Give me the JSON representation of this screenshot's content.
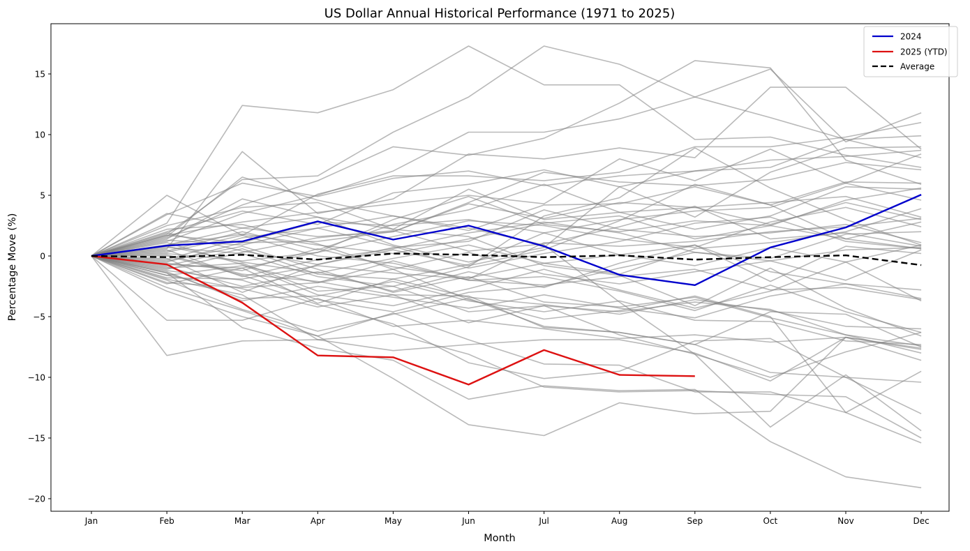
{
  "chart_data": {
    "type": "line",
    "title": "US Dollar Annual Historical Performance (1971 to 2025)",
    "xlabel": "Month",
    "ylabel": "Percentage Move (%)",
    "categories": [
      "Jan",
      "Feb",
      "Mar",
      "Apr",
      "May",
      "Jun",
      "Jul",
      "Aug",
      "Sep",
      "Oct",
      "Nov",
      "Dec"
    ],
    "yticks": [
      15,
      10,
      5,
      0,
      -5,
      -10,
      -15,
      -20
    ],
    "ytick_labels": [
      "15",
      "10",
      "5",
      "0",
      "−5",
      "−10",
      "−15",
      "−20"
    ],
    "ylim": [
      -21,
      19
    ],
    "grid": false,
    "legend_position": "top-right",
    "legend": [
      {
        "label": "2024",
        "color": "#0000cc",
        "style": "solid"
      },
      {
        "label": "2025 (YTD)",
        "color": "#dd1111",
        "style": "solid"
      },
      {
        "label": "Average",
        "color": "#000000",
        "style": "dashed"
      }
    ],
    "highlight_series": [
      {
        "name": "2024",
        "color": "#0000cc",
        "values": [
          0,
          0.85,
          1.2,
          2.85,
          1.35,
          2.5,
          0.8,
          -1.55,
          -2.4,
          0.7,
          2.35,
          5.05
        ]
      },
      {
        "name": "2025 (YTD)",
        "color": "#dd1111",
        "values": [
          0,
          -0.7,
          -3.85,
          -8.2,
          -8.35,
          -10.6,
          -7.75,
          -9.8,
          -9.9
        ]
      },
      {
        "name": "Average",
        "color": "#000000",
        "values": [
          0,
          -0.1,
          0.1,
          -0.3,
          0.2,
          0.1,
          -0.1,
          0.05,
          -0.3,
          -0.1,
          0.05,
          -0.75
        ]
      }
    ],
    "historical_color": "#b0b0b0",
    "historical_series": [
      {
        "name": "hist-1",
        "values": [
          0,
          2.7,
          12.4,
          11.8,
          13.7,
          17.3,
          14.1,
          14.1,
          9.6,
          9.8,
          8.3,
          7.3
        ]
      },
      {
        "name": "hist-2",
        "values": [
          0,
          1.8,
          6.3,
          6.6,
          10.2,
          13.1,
          17.3,
          15.8,
          13.1,
          11.4,
          9.6,
          8.1
        ]
      },
      {
        "name": "hist-3",
        "values": [
          0,
          1.5,
          4.2,
          6.2,
          9.0,
          8.3,
          9.7,
          12.6,
          16.1,
          15.5,
          7.9,
          5.9
        ]
      },
      {
        "name": "hist-4",
        "values": [
          0,
          1.2,
          3.5,
          5.0,
          7.0,
          10.2,
          10.2,
          11.3,
          13.1,
          15.4,
          9.4,
          11.8
        ]
      },
      {
        "name": "hist-5",
        "values": [
          0,
          0.6,
          8.6,
          3.5,
          4.7,
          8.4,
          8.0,
          8.9,
          8.1,
          13.9,
          13.9,
          8.8
        ]
      },
      {
        "name": "hist-6",
        "values": [
          0,
          5.0,
          1.7,
          5.1,
          6.6,
          6.6,
          6.2,
          6.9,
          9.0,
          9.0,
          9.8,
          11.0
        ]
      },
      {
        "name": "hist-7",
        "values": [
          0,
          3.4,
          6.0,
          4.9,
          6.4,
          7.0,
          5.8,
          6.6,
          7.0,
          7.3,
          9.6,
          9.9
        ]
      },
      {
        "name": "hist-8",
        "values": [
          0,
          2.0,
          3.7,
          2.6,
          5.2,
          5.9,
          7.1,
          5.7,
          3.2,
          6.9,
          8.9,
          9.0
        ]
      },
      {
        "name": "hist-9",
        "values": [
          0,
          1.7,
          2.8,
          3.6,
          4.3,
          5.0,
          4.3,
          8.0,
          6.2,
          8.8,
          6.0,
          8.4
        ]
      },
      {
        "name": "hist-10",
        "values": [
          0,
          3.5,
          2.3,
          1.6,
          2.0,
          4.4,
          6.9,
          6.1,
          5.8,
          6.3,
          7.7,
          7.1
        ]
      },
      {
        "name": "hist-11",
        "values": [
          0,
          1.3,
          0.9,
          2.3,
          3.3,
          2.1,
          4.2,
          4.3,
          5.7,
          4.2,
          6.1,
          6.0
        ]
      },
      {
        "name": "hist-12",
        "values": [
          0,
          0.4,
          2.0,
          0.5,
          2.6,
          3.8,
          5.9,
          3.6,
          2.2,
          3.3,
          5.7,
          5.5
        ]
      },
      {
        "name": "hist-13",
        "values": [
          0,
          -0.5,
          1.1,
          1.2,
          2.0,
          4.3,
          3.1,
          4.4,
          4.0,
          4.4,
          4.9,
          3.2
        ]
      },
      {
        "name": "hist-14",
        "values": [
          0,
          0.9,
          1.8,
          0.9,
          0.2,
          1.4,
          2.7,
          3.3,
          1.4,
          2.5,
          4.6,
          5.6
        ]
      },
      {
        "name": "hist-15",
        "values": [
          0,
          0.2,
          -0.4,
          0.3,
          1.6,
          2.9,
          2.5,
          1.4,
          0.7,
          2.8,
          4.0,
          2.4
        ]
      },
      {
        "name": "hist-16",
        "values": [
          0,
          1.9,
          0.4,
          -0.7,
          0.7,
          1.2,
          3.8,
          2.2,
          1.6,
          1.9,
          2.6,
          1.1
        ]
      },
      {
        "name": "hist-17",
        "values": [
          0,
          -1.1,
          0.3,
          1.5,
          2.1,
          0.4,
          1.0,
          2.4,
          4.1,
          1.4,
          1.9,
          0.8
        ]
      },
      {
        "name": "hist-18",
        "values": [
          0,
          0.5,
          -1.7,
          -0.3,
          0.6,
          1.9,
          2.8,
          1.9,
          0.3,
          -0.2,
          1.8,
          2.0
        ]
      },
      {
        "name": "hist-19",
        "values": [
          0,
          -0.3,
          1.5,
          2.3,
          0.8,
          -1.0,
          0.2,
          1.2,
          2.7,
          3.2,
          1.2,
          0.6
        ]
      },
      {
        "name": "hist-20",
        "values": [
          0,
          0.8,
          -0.5,
          -1.4,
          -0.2,
          0.9,
          -0.6,
          -1.5,
          0.6,
          1.1,
          2.0,
          3.9
        ]
      },
      {
        "name": "hist-21",
        "values": [
          0,
          -0.6,
          -1.2,
          0.6,
          -0.9,
          -1.8,
          -0.6,
          0.1,
          -0.8,
          0.7,
          -0.5,
          0.9
        ]
      },
      {
        "name": "hist-22",
        "values": [
          0,
          -1.6,
          -0.8,
          -2.2,
          -1.1,
          0.3,
          -1.5,
          -2.3,
          -1.3,
          -0.4,
          0.5,
          0.7
        ]
      },
      {
        "name": "hist-23",
        "values": [
          0,
          -0.9,
          -2.5,
          -1.3,
          -2.9,
          -1.3,
          -2.6,
          -0.6,
          0.9,
          -1.3,
          -2.3,
          -3.5
        ]
      },
      {
        "name": "hist-24",
        "values": [
          0,
          1.1,
          -0.7,
          -3.2,
          -4.1,
          -2.7,
          -1.1,
          -2.8,
          -4.3,
          -2.9,
          -0.5,
          -3.7
        ]
      },
      {
        "name": "hist-25",
        "values": [
          0,
          -2.3,
          -1.0,
          -3.9,
          -1.9,
          -3.4,
          -4.0,
          -4.8,
          -3.6,
          -4.5,
          -5.8,
          -6.0
        ]
      },
      {
        "name": "hist-26",
        "values": [
          0,
          -1.3,
          -3.7,
          -2.5,
          -3.4,
          -4.3,
          -3.2,
          -4.3,
          -5.1,
          -3.3,
          -2.3,
          -2.8
        ]
      },
      {
        "name": "hist-27",
        "values": [
          0,
          -2.0,
          -4.4,
          -6.2,
          -4.8,
          -3.5,
          -5.8,
          -6.3,
          -7.3,
          -4.6,
          -4.8,
          -7.5
        ]
      },
      {
        "name": "hist-28",
        "values": [
          0,
          -1.6,
          -2.7,
          -4.2,
          -3.2,
          -5.5,
          -4.1,
          -4.6,
          -3.8,
          -4.4,
          -6.5,
          -7.4
        ]
      },
      {
        "name": "hist-29",
        "values": [
          0,
          -5.3,
          -5.3,
          -3.5,
          -5.8,
          -5.3,
          -6.0,
          -6.8,
          -6.5,
          -7.1,
          -6.7,
          -7.7
        ]
      },
      {
        "name": "hist-30",
        "values": [
          0,
          -2.9,
          -5.0,
          -6.6,
          -4.7,
          -6.9,
          -8.9,
          -9.0,
          -11.2,
          -11.2,
          -12.9,
          -9.5
        ]
      },
      {
        "name": "hist-31",
        "values": [
          0,
          -8.2,
          -7.0,
          -6.9,
          -7.8,
          -7.3,
          -6.9,
          -6.9,
          -8.0,
          -10.3,
          -6.7,
          -7.6
        ]
      },
      {
        "name": "hist-32",
        "values": [
          0,
          -1.9,
          -3.2,
          -6.9,
          -6.4,
          -8.1,
          -10.8,
          -11.2,
          -11.1,
          -11.4,
          -11.6,
          -15.0
        ]
      },
      {
        "name": "hist-33",
        "values": [
          0,
          -2.6,
          -4.5,
          -6.6,
          -10.1,
          -13.9,
          -14.8,
          -12.1,
          -13.0,
          -12.8,
          -6.7,
          -8.6
        ]
      },
      {
        "name": "hist-34",
        "values": [
          0,
          -1.4,
          -5.9,
          -7.6,
          -8.6,
          -11.8,
          -10.7,
          -11.1,
          -11.0,
          -15.3,
          -18.2,
          -19.1
        ]
      },
      {
        "name": "hist-35",
        "values": [
          0,
          -1.2,
          -2.0,
          -4.0,
          -5.6,
          -8.8,
          -10.1,
          -9.5,
          -7.0,
          -6.8,
          -10.0,
          -13.0
        ]
      },
      {
        "name": "hist-36",
        "values": [
          0,
          0.1,
          -1.5,
          -2.1,
          -3.2,
          -3.3,
          -5.9,
          -6.3,
          -7.3,
          -9.6,
          -10.0,
          -10.4
        ]
      },
      {
        "name": "hist-37",
        "values": [
          0,
          -1.0,
          -0.6,
          -2.9,
          -2.5,
          -4.6,
          -4.1,
          -6.5,
          -8.1,
          -10.0,
          -7.9,
          -6.3
        ]
      },
      {
        "name": "hist-38",
        "values": [
          0,
          -0.4,
          0.8,
          -1.1,
          -3.0,
          -1.7,
          -3.8,
          -4.2,
          -3.4,
          -5.1,
          -6.5,
          -8.0
        ]
      },
      {
        "name": "hist-39",
        "values": [
          0,
          0.3,
          1.7,
          0.0,
          -0.6,
          -2.0,
          -1.7,
          -2.9,
          -4.5,
          -2.4,
          -4.6,
          -6.3
        ]
      },
      {
        "name": "hist-40",
        "values": [
          0,
          2.5,
          4.0,
          4.4,
          2.2,
          1.6,
          -0.8,
          -1.6,
          -4.1,
          -1.0,
          -4.3,
          -6.6
        ]
      },
      {
        "name": "hist-41",
        "values": [
          0,
          1.6,
          6.5,
          4.6,
          3.3,
          2.3,
          0.9,
          -3.8,
          -8.1,
          -14.1,
          -9.8,
          -14.4
        ]
      },
      {
        "name": "hist-42",
        "values": [
          0,
          2.2,
          2.6,
          1.0,
          -1.1,
          -3.6,
          -5.2,
          -4.5,
          -3.3,
          -5.0,
          -12.9,
          -15.4
        ]
      },
      {
        "name": "hist-43",
        "values": [
          0,
          0.7,
          0.2,
          -1.7,
          -2.5,
          -0.9,
          3.3,
          4.8,
          8.9,
          5.6,
          3.0,
          0.9
        ]
      },
      {
        "name": "hist-44",
        "values": [
          0,
          1.4,
          4.7,
          3.2,
          2.2,
          5.5,
          3.0,
          3.6,
          4.0,
          2.6,
          4.4,
          3.0
        ]
      },
      {
        "name": "hist-45",
        "values": [
          0,
          -0.2,
          -3.0,
          -0.7,
          0.5,
          -0.8,
          0.5,
          2.9,
          5.9,
          4.2,
          1.4,
          2.8
        ]
      },
      {
        "name": "hist-46",
        "values": [
          0,
          -0.8,
          0.6,
          -1.5,
          -1.9,
          -0.7,
          1.9,
          3.0,
          3.7,
          4.0,
          6.0,
          4.6
        ]
      },
      {
        "name": "hist-47",
        "values": [
          0,
          0.0,
          -1.6,
          -3.6,
          -4.6,
          -3.0,
          -2.5,
          -1.0,
          0.3,
          -0.4,
          -2.0,
          0.5
        ]
      },
      {
        "name": "hist-48",
        "values": [
          0,
          -1.8,
          -1.9,
          -0.8,
          -1.4,
          -1.9,
          1.1,
          0.8,
          1.2,
          2.0,
          2.4,
          3.1
        ]
      },
      {
        "name": "hist-49",
        "values": [
          0,
          0.9,
          2.3,
          3.2,
          0.9,
          -0.5,
          0.7,
          5.7,
          7.0,
          7.9,
          8.2,
          8.7
        ]
      },
      {
        "name": "hist-50",
        "values": [
          0,
          -1.4,
          -3.5,
          -3.3,
          -2.1,
          -3.7,
          -4.6,
          -3.7,
          -5.3,
          -5.4,
          -7.0,
          -7.3
        ]
      },
      {
        "name": "hist-51",
        "values": [
          0,
          1.7,
          1.1,
          2.8,
          2.5,
          3.0,
          1.9,
          0.1,
          0.9,
          -2.1,
          0.8,
          0.2
        ]
      },
      {
        "name": "hist-52",
        "values": [
          0,
          -0.7,
          -1.0,
          0.3,
          3.0,
          4.9,
          2.6,
          2.0,
          2.9,
          2.5,
          1.4,
          0.6
        ]
      },
      {
        "name": "hist-53",
        "values": [
          0,
          -2.2,
          -2.6,
          -2.2,
          -0.4,
          -2.0,
          -2.4,
          -1.7,
          -1.1,
          -2.8,
          -2.6,
          -3.6
        ]
      }
    ]
  }
}
